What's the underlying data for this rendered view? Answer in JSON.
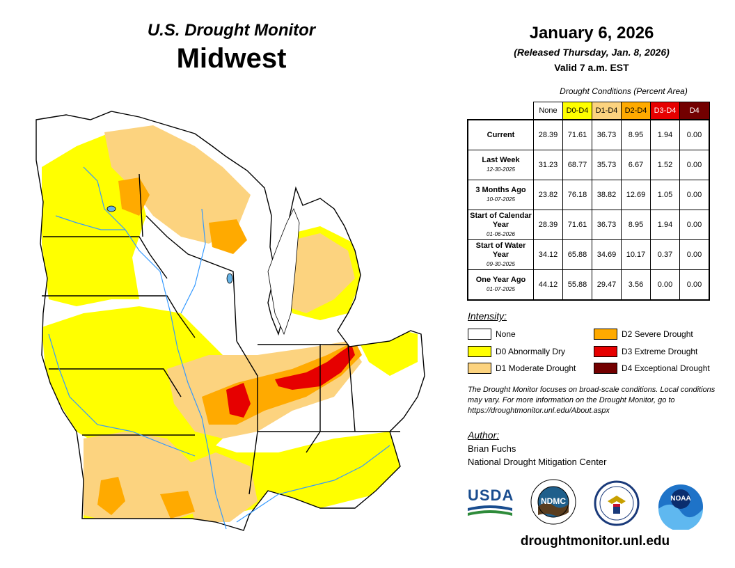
{
  "header": {
    "agency": "U.S. Drought Monitor",
    "region": "Midwest",
    "date": "January 6, 2026",
    "released": "(Released Thursday, Jan. 8, 2026)",
    "valid": "Valid 7 a.m. EST"
  },
  "stats": {
    "caption": "Drought Conditions (Percent Area)",
    "columns": [
      {
        "label": "None",
        "bg": "#ffffff",
        "fg": "#000000"
      },
      {
        "label": "D0-D4",
        "bg": "#ffff00",
        "fg": "#000000"
      },
      {
        "label": "D1-D4",
        "bg": "#fcd37f",
        "fg": "#000000"
      },
      {
        "label": "D2-D4",
        "bg": "#ffaa00",
        "fg": "#000000"
      },
      {
        "label": "D3-D4",
        "bg": "#e60000",
        "fg": "#ffffff"
      },
      {
        "label": "D4",
        "bg": "#730000",
        "fg": "#ffffff"
      }
    ],
    "rows": [
      {
        "label": "Current",
        "sub": "",
        "values": [
          "28.39",
          "71.61",
          "36.73",
          "8.95",
          "1.94",
          "0.00"
        ]
      },
      {
        "label": "Last Week",
        "sub": "12-30-2025",
        "values": [
          "31.23",
          "68.77",
          "35.73",
          "6.67",
          "1.52",
          "0.00"
        ]
      },
      {
        "label": "3 Months Ago",
        "sub": "10-07-2025",
        "values": [
          "23.82",
          "76.18",
          "38.82",
          "12.69",
          "1.05",
          "0.00"
        ]
      },
      {
        "label": "Start of Calendar Year",
        "sub": "01-06-2026",
        "values": [
          "28.39",
          "71.61",
          "36.73",
          "8.95",
          "1.94",
          "0.00"
        ]
      },
      {
        "label": "Start of Water Year",
        "sub": "09-30-2025",
        "values": [
          "34.12",
          "65.88",
          "34.69",
          "10.17",
          "0.37",
          "0.00"
        ]
      },
      {
        "label": "One Year Ago",
        "sub": "01-07-2025",
        "values": [
          "44.12",
          "55.88",
          "29.47",
          "3.56",
          "0.00",
          "0.00"
        ]
      }
    ]
  },
  "legend": {
    "title": "Intensity:",
    "items": [
      {
        "label": "None",
        "color": "#ffffff"
      },
      {
        "label": "D0 Abnormally Dry",
        "color": "#ffff00"
      },
      {
        "label": "D1 Moderate Drought",
        "color": "#fcd37f"
      },
      {
        "label": "D2 Severe Drought",
        "color": "#ffaa00"
      },
      {
        "label": "D3 Extreme Drought",
        "color": "#e60000"
      },
      {
        "label": "D4 Exceptional Drought",
        "color": "#730000"
      }
    ]
  },
  "note": "The Drought Monitor focuses on broad-scale conditions. Local conditions may vary. For more information on the Drought Monitor, go to https://droughtmonitor.unl.edu/About.aspx",
  "author": {
    "title": "Author:",
    "name": "Brian Fuchs",
    "org": "National Drought Mitigation Center"
  },
  "logos": {
    "usda": "USDA",
    "ndmc": "NDMC",
    "noaa": "NOAA"
  },
  "website": "droughtmonitor.unl.edu",
  "map": {
    "colors": {
      "none": "#ffffff",
      "d0": "#ffff00",
      "d1": "#fcd37f",
      "d2": "#ffaa00",
      "d3": "#e60000",
      "water": "#66b3e6",
      "border": "#000000"
    }
  }
}
